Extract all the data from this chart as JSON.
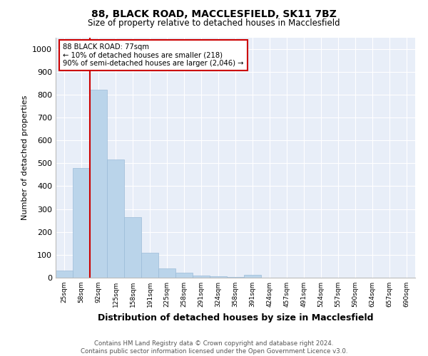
{
  "title1": "88, BLACK ROAD, MACCLESFIELD, SK11 7BZ",
  "title2": "Size of property relative to detached houses in Macclesfield",
  "xlabel": "Distribution of detached houses by size in Macclesfield",
  "ylabel": "Number of detached properties",
  "footer1": "Contains HM Land Registry data © Crown copyright and database right 2024.",
  "footer2": "Contains public sector information licensed under the Open Government Licence v3.0.",
  "annotation_line1": "88 BLACK ROAD: 77sqm",
  "annotation_line2": "← 10% of detached houses are smaller (218)",
  "annotation_line3": "90% of semi-detached houses are larger (2,046) →",
  "bar_color": "#bad4ea",
  "bar_edge_color": "#9bbbd8",
  "background_color": "#e8eef8",
  "grid_color": "#ffffff",
  "annotation_box_edge_color": "#cc0000",
  "red_line_color": "#cc0000",
  "fig_bg_color": "#ffffff",
  "categories": [
    "25sqm",
    "58sqm",
    "92sqm",
    "125sqm",
    "158sqm",
    "191sqm",
    "225sqm",
    "258sqm",
    "291sqm",
    "324sqm",
    "358sqm",
    "391sqm",
    "424sqm",
    "457sqm",
    "491sqm",
    "524sqm",
    "557sqm",
    "590sqm",
    "624sqm",
    "657sqm",
    "690sqm"
  ],
  "values": [
    30,
    480,
    820,
    515,
    265,
    110,
    40,
    22,
    10,
    5,
    2,
    12,
    0,
    0,
    0,
    0,
    0,
    0,
    0,
    0,
    0
  ],
  "ylim": [
    0,
    1050
  ],
  "yticks": [
    0,
    100,
    200,
    300,
    400,
    500,
    600,
    700,
    800,
    900,
    1000
  ],
  "red_line_x": 1.5
}
